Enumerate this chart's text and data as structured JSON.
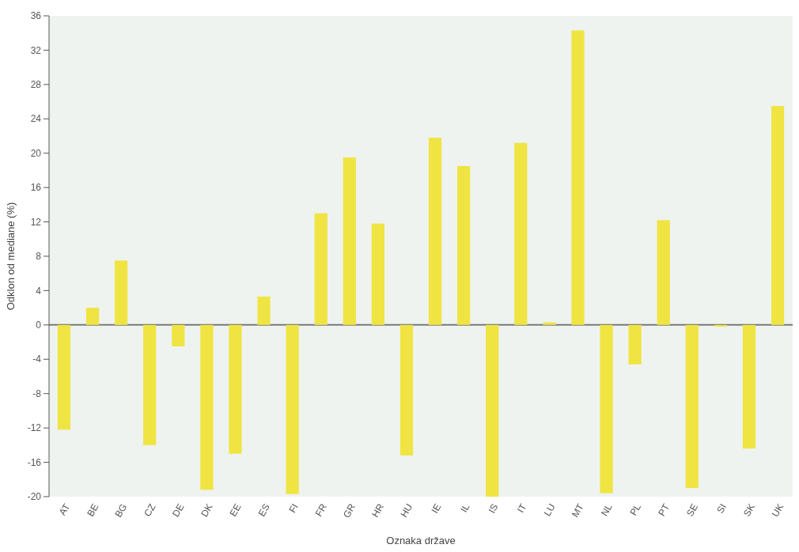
{
  "chart_data": {
    "type": "bar",
    "xlabel": "Oznaka države",
    "ylabel": "Odklon od mediane (%)",
    "categories": [
      "AT",
      "BE",
      "BG",
      "CZ",
      "DE",
      "DK",
      "EE",
      "ES",
      "FI",
      "FR",
      "GR",
      "HR",
      "HU",
      "IE",
      "IL",
      "IS",
      "IT",
      "LU",
      "MT",
      "NL",
      "PL",
      "PT",
      "SE",
      "SI",
      "SK",
      "UK"
    ],
    "values": [
      -12.2,
      2,
      7.5,
      -14,
      -2.5,
      -19.2,
      -15,
      3.3,
      -19.7,
      13,
      19.5,
      11.8,
      -15.2,
      21.8,
      18.5,
      -20,
      21.2,
      0.3,
      34.3,
      -19.6,
      -4.6,
      12.2,
      -19,
      -0.2,
      -14.4,
      25.5
    ],
    "color": "#f0e442",
    "ylim": [
      -20,
      36
    ],
    "yticks": [
      -20,
      -16,
      -12,
      -8,
      -4,
      0,
      4,
      8,
      12,
      16,
      20,
      24,
      28,
      32,
      36
    ],
    "ref_lines": [
      {
        "axis": "y",
        "value": 0,
        "color": "#7a7a7a"
      }
    ],
    "grid": false
  }
}
